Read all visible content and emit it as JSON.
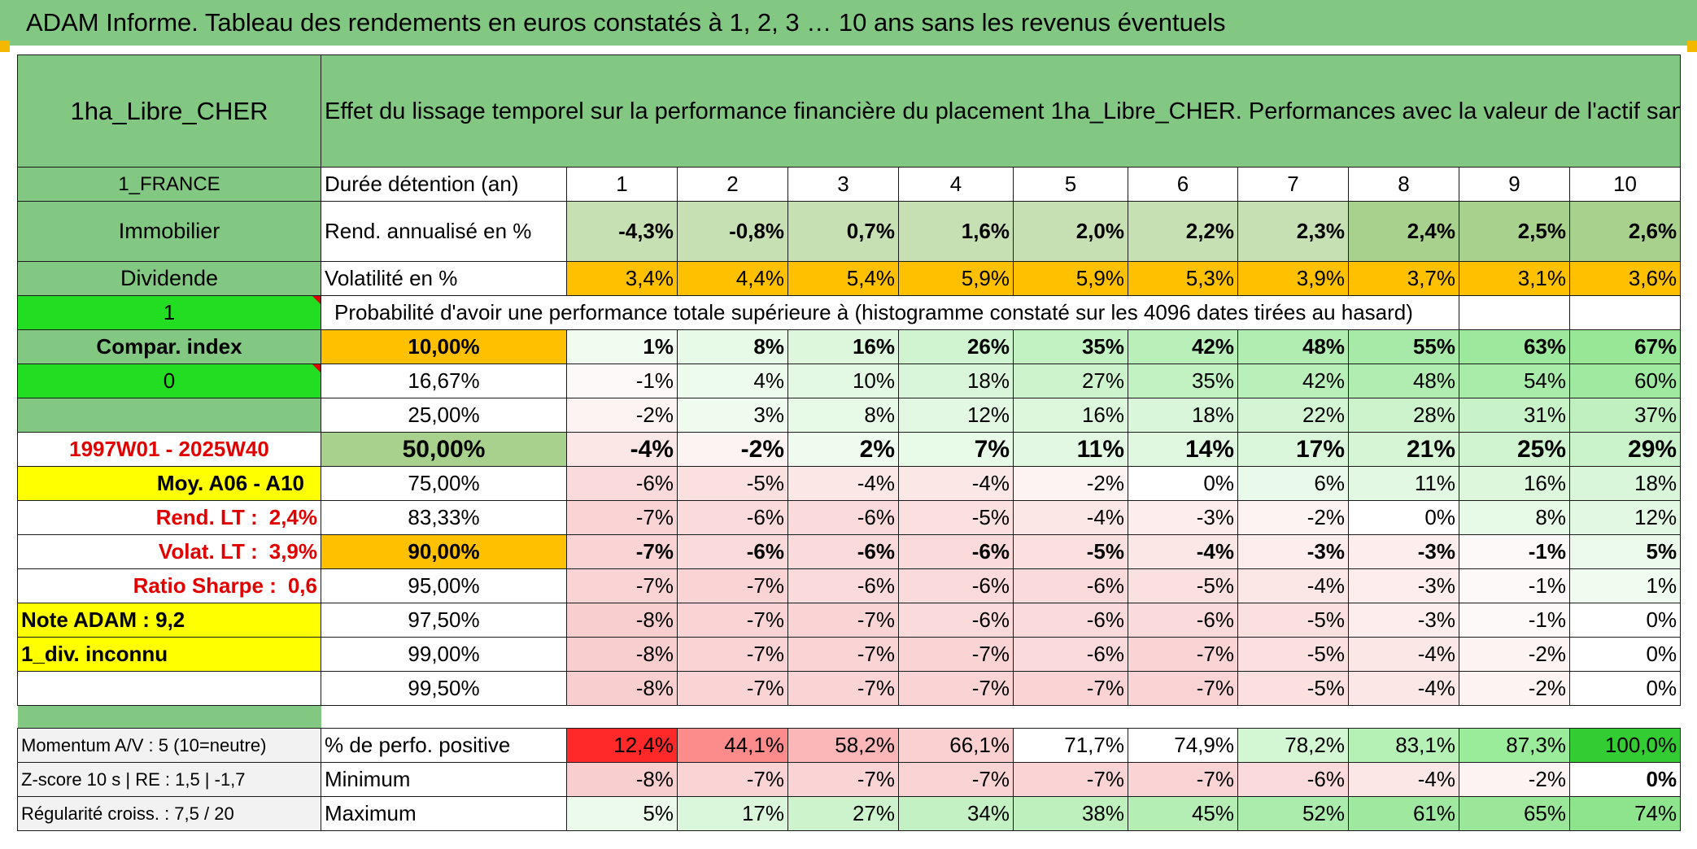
{
  "title": "ADAM Informe. Tableau des rendements en euros constatés à 1, 2, 3 … 10 ans sans les revenus éventuels",
  "left": {
    "fund_name": "1ha_Libre_CHER",
    "country": "1_FRANCE",
    "category": "Immobilier",
    "dividend": "Dividende",
    "param1": "1",
    "compar_index": "Compar. index",
    "param0": "0",
    "period": "1997W01 - 2025W40",
    "moy": "Moy. A06 - A10",
    "rend_lt_label": "Rend. LT :",
    "rend_lt_value": "2,4%",
    "volat_lt_label": "Volat. LT :",
    "volat_lt_value": "3,9%",
    "sharpe_label": "Ratio Sharpe :",
    "sharpe_value": "0,6",
    "note": "Note ADAM : 9,2",
    "div_status": "1_div. inconnu",
    "momentum": "Momentum A/V : 5 (10=neutre)",
    "zscore": "Z-score 10 s | RE : 1,5 | -1,7",
    "regularite": "Régularité croiss. : 7,5 / 20"
  },
  "header_text": "Effet du lissage temporel sur la performance financière du placement 1ha_Libre_CHER. Performances avec la valeur de l'actif sans prise en compte des revenus.",
  "duration_label": "Durée détention (an)",
  "years": [
    "1",
    "2",
    "3",
    "4",
    "5",
    "6",
    "7",
    "8",
    "9",
    "10"
  ],
  "rend_label": "Rend. annualisé en %",
  "rend_values": [
    "-4,3%",
    "-0,8%",
    "0,7%",
    "1,6%",
    "2,0%",
    "2,2%",
    "2,3%",
    "2,4%",
    "2,5%",
    "2,6%"
  ],
  "vol_label": "Volatilité en %",
  "vol_values": [
    "3,4%",
    "4,4%",
    "5,4%",
    "5,9%",
    "5,9%",
    "5,3%",
    "3,9%",
    "3,7%",
    "3,1%",
    "3,6%"
  ],
  "prob_text": "Probabilité d'avoir une performance totale supérieure à (histogramme constaté sur les 4096 dates tirées au hasard)",
  "quantiles": [
    {
      "label": "10,00%",
      "values": [
        "1%",
        "8%",
        "16%",
        "26%",
        "35%",
        "42%",
        "48%",
        "55%",
        "63%",
        "67%"
      ]
    },
    {
      "label": "16,67%",
      "values": [
        "-1%",
        "4%",
        "10%",
        "18%",
        "27%",
        "35%",
        "42%",
        "48%",
        "54%",
        "60%"
      ]
    },
    {
      "label": "25,00%",
      "values": [
        "-2%",
        "3%",
        "8%",
        "12%",
        "16%",
        "18%",
        "22%",
        "28%",
        "31%",
        "37%"
      ]
    },
    {
      "label": "50,00%",
      "values": [
        "-4%",
        "-2%",
        "2%",
        "7%",
        "11%",
        "14%",
        "17%",
        "21%",
        "25%",
        "29%"
      ]
    },
    {
      "label": "75,00%",
      "values": [
        "-6%",
        "-5%",
        "-4%",
        "-4%",
        "-2%",
        "0%",
        "6%",
        "11%",
        "16%",
        "18%"
      ]
    },
    {
      "label": "83,33%",
      "values": [
        "-7%",
        "-6%",
        "-6%",
        "-5%",
        "-4%",
        "-3%",
        "-2%",
        "0%",
        "8%",
        "12%"
      ]
    },
    {
      "label": "90,00%",
      "values": [
        "-7%",
        "-6%",
        "-6%",
        "-6%",
        "-5%",
        "-4%",
        "-3%",
        "-3%",
        "-1%",
        "5%"
      ]
    },
    {
      "label": "95,00%",
      "values": [
        "-7%",
        "-7%",
        "-6%",
        "-6%",
        "-6%",
        "-5%",
        "-4%",
        "-3%",
        "-1%",
        "1%"
      ]
    },
    {
      "label": "97,50%",
      "values": [
        "-8%",
        "-7%",
        "-7%",
        "-6%",
        "-6%",
        "-6%",
        "-5%",
        "-3%",
        "-1%",
        "0%"
      ]
    },
    {
      "label": "99,00%",
      "values": [
        "-8%",
        "-7%",
        "-7%",
        "-7%",
        "-6%",
        "-7%",
        "-5%",
        "-4%",
        "-2%",
        "0%"
      ]
    },
    {
      "label": "99,50%",
      "values": [
        "-8%",
        "-7%",
        "-7%",
        "-7%",
        "-7%",
        "-7%",
        "-5%",
        "-4%",
        "-2%",
        "0%"
      ]
    }
  ],
  "positive_label": "% de perfo. positive",
  "positive_values": [
    "12,4%",
    "44,1%",
    "58,2%",
    "66,1%",
    "71,7%",
    "74,9%",
    "78,2%",
    "83,1%",
    "87,3%",
    "100,0%"
  ],
  "min_label": "Minimum",
  "min_values": [
    "-8%",
    "-7%",
    "-7%",
    "-7%",
    "-7%",
    "-7%",
    "-6%",
    "-4%",
    "-2%",
    "0%"
  ],
  "max_label": "Maximum",
  "max_values": [
    "5%",
    "17%",
    "27%",
    "34%",
    "38%",
    "45%",
    "52%",
    "61%",
    "65%",
    "74%"
  ],
  "colors": {
    "header_green": "#82c882",
    "bright_green": "#22dd22",
    "orange": "#ffc000",
    "yellow": "#ffff00",
    "label_red": "#e00000"
  }
}
